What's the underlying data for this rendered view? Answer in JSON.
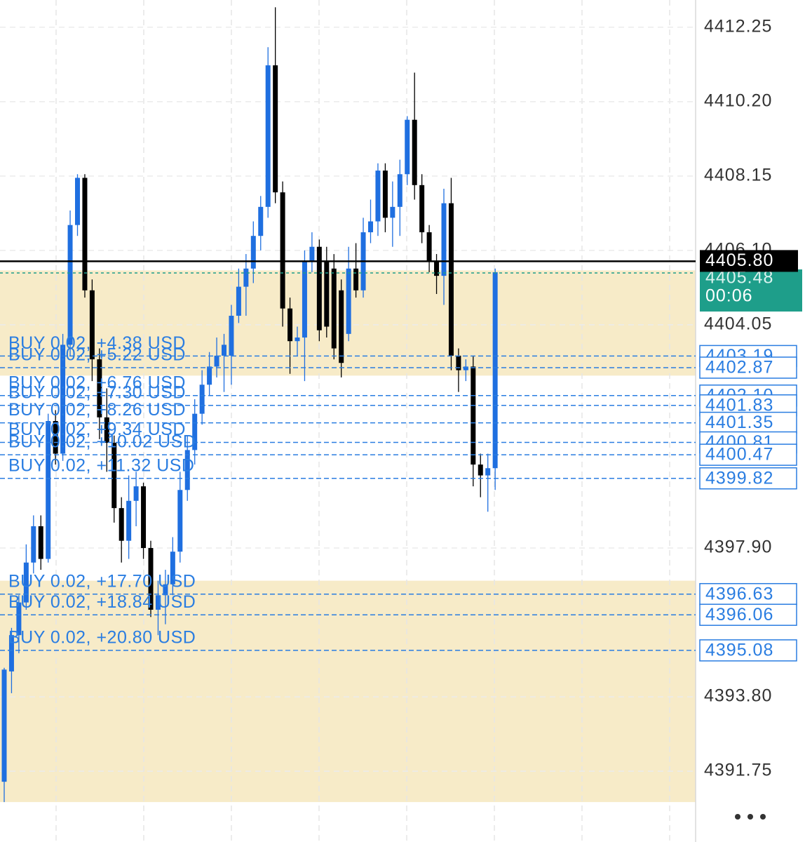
{
  "chart_data": {
    "type": "candlestick",
    "up_color": "#1f6fe0",
    "down_color": "#000000",
    "zone_color": "#f7ebc8",
    "order_color": "#2a7de1",
    "ylim": [
      4389.8,
      4413.0
    ],
    "yticks": [
      4412.25,
      {
        "value": 4410.2,
        "label": "4410.20"
      },
      4408.15,
      {
        "value": 4406.1,
        "label": "4406.10"
      },
      4404.05,
      {
        "value": 4397.9,
        "label": "4397.90"
      },
      {
        "value": 4393.8,
        "label": "4393.80"
      },
      4391.75
    ],
    "open": [
      4391.46,
      4394.5,
      4395.5,
      4396.4,
      4397.5,
      4398.5,
      4397.6,
      4401.4,
      4400.5,
      4403.5,
      4406.8,
      4408.1,
      4405.0,
      4403.1,
      4401.5,
      4400.8,
      4399.0,
      4398.1,
      4399.2,
      4399.6,
      4397.9,
      4396.2,
      4396.6,
      4396.9,
      4397.8,
      4399.5,
      4400.6,
      4401.6,
      4402.4,
      4402.9,
      4403.2,
      4403.2,
      4404.3,
      4405.1,
      4405.6,
      4406.5,
      4407.3,
      4411.2,
      4407.7,
      4404.5,
      4403.6,
      4403.7,
      4405.8,
      4406.2,
      4405.8,
      4405.6,
      4405.0,
      4403.8,
      4405.6,
      4405.0,
      4406.6,
      4406.9,
      4408.3,
      4407.0,
      4407.3,
      4408.2,
      4409.7,
      4407.9,
      4406.6,
      4405.8,
      4405.4,
      4407.4,
      4403.2,
      4402.8,
      4402.9,
      4400.2,
      4399.9,
      4400.1
    ],
    "high": [
      4394.6,
      4395.7,
      4396.6,
      4398.0,
      4398.8,
      4398.8,
      4401.6,
      4401.7,
      4403.8,
      4407.2,
      4408.2,
      4408.2,
      4405.3,
      4403.4,
      4402.3,
      4401.0,
      4399.3,
      4399.9,
      4400.0,
      4399.7,
      4398.1,
      4397.0,
      4397.3,
      4398.2,
      4400.0,
      4401.0,
      4402.0,
      4402.8,
      4403.3,
      4403.7,
      4403.8,
      4404.6,
      4405.6,
      4406.0,
      4406.9,
      4407.6,
      4411.7,
      4412.8,
      4408.0,
      4404.8,
      4404.0,
      4406.1,
      4406.6,
      4406.4,
      4406.2,
      4406.0,
      4405.3,
      4406.2,
      4406.3,
      4407.0,
      4407.5,
      4408.5,
      4408.5,
      4408.0,
      4408.6,
      4409.8,
      4411.0,
      4408.2,
      4406.8,
      4406.0,
      4407.8,
      4408.1,
      4403.4,
      4403.1,
      4403.2,
      4400.5,
      4400.5,
      4405.6
    ],
    "low": [
      4390.9,
      4393.9,
      4395.0,
      4396.2,
      4397.2,
      4397.3,
      4397.5,
      4400.2,
      4400.3,
      4403.2,
      4406.5,
      4404.8,
      4402.5,
      4400.9,
      4400.0,
      4398.6,
      4397.5,
      4397.6,
      4398.5,
      4397.6,
      4396.0,
      4395.5,
      4395.8,
      4396.6,
      4397.5,
      4399.2,
      4400.2,
      4401.3,
      4402.1,
      4402.6,
      4402.2,
      4402.4,
      4404.1,
      4404.3,
      4405.2,
      4406.1,
      4407.0,
      4407.4,
      4404.0,
      4402.7,
      4403.2,
      4402.5,
      4405.5,
      4403.6,
      4403.7,
      4403.1,
      4402.6,
      4403.6,
      4404.8,
      4404.8,
      4406.3,
      4406.5,
      4406.6,
      4406.2,
      4406.5,
      4407.9,
      4407.5,
      4406.3,
      4405.5,
      4404.9,
      4404.6,
      4402.8,
      4402.2,
      4402.5,
      4399.6,
      4399.3,
      4398.9,
      4399.5
    ],
    "close": [
      4394.55,
      4395.5,
      4396.4,
      4397.5,
      4398.5,
      4397.6,
      4401.4,
      4400.5,
      4403.5,
      4406.8,
      4408.1,
      4405.0,
      4403.1,
      4401.5,
      4400.8,
      4399.0,
      4398.1,
      4399.2,
      4399.6,
      4397.9,
      4396.2,
      4396.6,
      4396.9,
      4397.8,
      4399.5,
      4400.6,
      4401.6,
      4402.4,
      4402.9,
      4403.2,
      4403.5,
      4404.3,
      4405.1,
      4405.6,
      4406.5,
      4407.3,
      4411.2,
      4407.7,
      4404.5,
      4403.6,
      4403.7,
      4405.8,
      4406.2,
      4403.9,
      4404.0,
      4403.4,
      4403.0,
      4405.6,
      4405.0,
      4406.6,
      4406.9,
      4408.3,
      4407.0,
      4407.3,
      4408.2,
      4409.7,
      4407.9,
      4406.6,
      4405.8,
      4405.4,
      4407.4,
      4403.2,
      4402.8,
      4402.9,
      4400.2,
      4399.9,
      4400.1,
      4405.5
    ],
    "zones": [
      [
        4405.55,
        4402.65
      ],
      [
        4397.0,
        4390.9
      ]
    ],
    "last_price": {
      "value": 4405.8,
      "label": "4405.80"
    },
    "bid_price": 4405.48,
    "countdown": "00:06",
    "orders": [
      {
        "price": 4403.19,
        "text": "BUY 0.02, +4.38 USD"
      },
      {
        "price": 4402.87,
        "text": "BUY 0.02, +5.22 USD"
      },
      {
        "price": {
          "value": 4402.1,
          "label": "4402.10"
        },
        "text": "BUY 0.02, +6.76 USD"
      },
      {
        "price": 4401.83,
        "text": "BUY 0.02, +7.30 USD"
      },
      {
        "price": 4401.35,
        "text": "BUY 0.02, +8.26 USD"
      },
      {
        "price": 4400.81,
        "text": "BUY 0.02, +9.34 USD"
      },
      {
        "price": 4400.47,
        "text": "BUY 0.02, +10.02 USD"
      },
      {
        "price": 4399.82,
        "text": "BUY 0.02, +11.32 USD"
      },
      {
        "price": 4396.63,
        "text": "BUY 0.02, +17.70 USD"
      },
      {
        "price": 4396.06,
        "text": "BUY 0.02, +18.84 USD"
      },
      {
        "price": 4395.08,
        "text": "BUY 0.02, +20.80 USD"
      }
    ]
  }
}
